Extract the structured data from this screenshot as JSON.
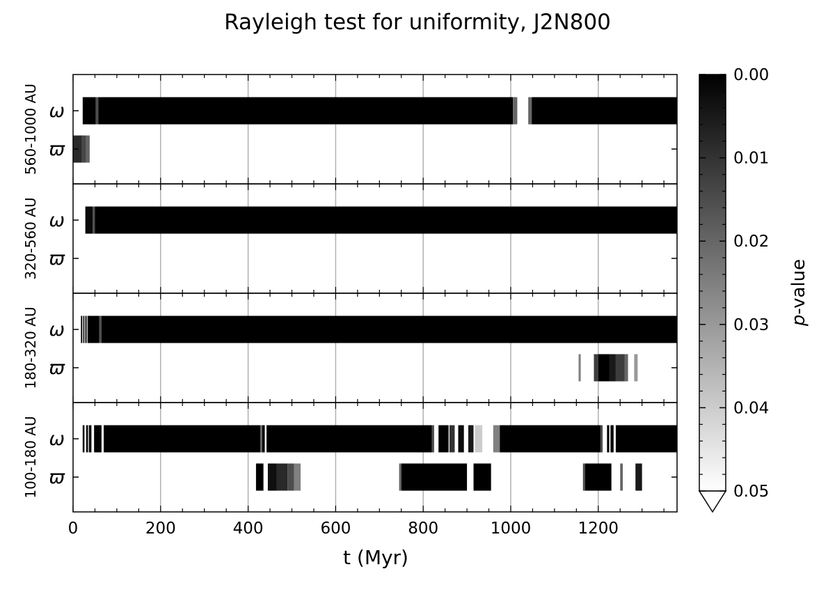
{
  "chart_data": {
    "type": "heatmap",
    "title": "Rayleigh test for uniformity, J2N800",
    "xlabel": "t (Myr)",
    "xlim": [
      0,
      1380
    ],
    "xticks": [
      0,
      200,
      400,
      600,
      800,
      1000,
      1200
    ],
    "x_grid": true,
    "colorbar": {
      "label_italic": "p",
      "label_rest": "-value",
      "range": [
        0.0,
        0.05
      ],
      "ticks": [
        "0.00",
        "0.01",
        "0.02",
        "0.03",
        "0.04",
        "0.05"
      ],
      "colormap": "gray",
      "extend": "max"
    },
    "rows": [
      "ω",
      "ϖ"
    ],
    "panels": [
      {
        "label": "560-1000 AU",
        "series": [
          {
            "name": "ω",
            "segments": [
              {
                "x0": 22,
                "x1": 52,
                "p": 0.0
              },
              {
                "x0": 52,
                "x1": 58,
                "p": 0.015
              },
              {
                "x0": 58,
                "x1": 1005,
                "p": 0.0
              },
              {
                "x0": 1005,
                "x1": 1015,
                "p": 0.02
              },
              {
                "x0": 1040,
                "x1": 1048,
                "p": 0.02
              },
              {
                "x0": 1048,
                "x1": 1380,
                "p": 0.0
              }
            ]
          },
          {
            "name": "ϖ",
            "segments": [
              {
                "x0": 0,
                "x1": 20,
                "p": 0.008
              },
              {
                "x0": 20,
                "x1": 30,
                "p": 0.014
              },
              {
                "x0": 30,
                "x1": 38,
                "p": 0.02
              }
            ]
          }
        ]
      },
      {
        "label": "320-560 AU",
        "series": [
          {
            "name": "ω",
            "segments": [
              {
                "x0": 28,
                "x1": 45,
                "p": 0.002
              },
              {
                "x0": 45,
                "x1": 50,
                "p": 0.015
              },
              {
                "x0": 50,
                "x1": 1380,
                "p": 0.0
              }
            ]
          },
          {
            "name": "ϖ",
            "segments": []
          }
        ]
      },
      {
        "label": "180-320 AU",
        "series": [
          {
            "name": "ω",
            "segments": [
              {
                "x0": 18,
                "x1": 21,
                "p": 0.0
              },
              {
                "x0": 23,
                "x1": 26,
                "p": 0.005
              },
              {
                "x0": 28,
                "x1": 31,
                "p": 0.0
              },
              {
                "x0": 33,
                "x1": 60,
                "p": 0.0
              },
              {
                "x0": 60,
                "x1": 65,
                "p": 0.015
              },
              {
                "x0": 65,
                "x1": 1380,
                "p": 0.0
              }
            ]
          },
          {
            "name": "ϖ",
            "segments": [
              {
                "x0": 1155,
                "x1": 1160,
                "p": 0.025
              },
              {
                "x0": 1190,
                "x1": 1200,
                "p": 0.012
              },
              {
                "x0": 1200,
                "x1": 1225,
                "p": 0.0
              },
              {
                "x0": 1225,
                "x1": 1240,
                "p": 0.005
              },
              {
                "x0": 1240,
                "x1": 1260,
                "p": 0.012
              },
              {
                "x0": 1260,
                "x1": 1268,
                "p": 0.02
              },
              {
                "x0": 1282,
                "x1": 1290,
                "p": 0.03
              }
            ]
          }
        ]
      },
      {
        "label": "100-180 AU",
        "series": [
          {
            "name": "ω",
            "segments": [
              {
                "x0": 22,
                "x1": 26,
                "p": 0.0
              },
              {
                "x0": 30,
                "x1": 34,
                "p": 0.0
              },
              {
                "x0": 36,
                "x1": 42,
                "p": 0.003
              },
              {
                "x0": 48,
                "x1": 65,
                "p": 0.0
              },
              {
                "x0": 70,
                "x1": 428,
                "p": 0.0
              },
              {
                "x0": 428,
                "x1": 432,
                "p": 0.02
              },
              {
                "x0": 432,
                "x1": 438,
                "p": 0.0
              },
              {
                "x0": 442,
                "x1": 820,
                "p": 0.0
              },
              {
                "x0": 820,
                "x1": 825,
                "p": 0.015
              },
              {
                "x0": 835,
                "x1": 858,
                "p": 0.0
              },
              {
                "x0": 860,
                "x1": 872,
                "p": 0.01
              },
              {
                "x0": 880,
                "x1": 893,
                "p": 0.002
              },
              {
                "x0": 903,
                "x1": 915,
                "p": 0.005
              },
              {
                "x0": 918,
                "x1": 935,
                "p": 0.04
              },
              {
                "x0": 960,
                "x1": 975,
                "p": 0.025
              },
              {
                "x0": 975,
                "x1": 1205,
                "p": 0.0
              },
              {
                "x0": 1205,
                "x1": 1210,
                "p": 0.015
              },
              {
                "x0": 1220,
                "x1": 1225,
                "p": 0.0
              },
              {
                "x0": 1228,
                "x1": 1235,
                "p": 0.0
              },
              {
                "x0": 1240,
                "x1": 1380,
                "p": 0.0
              }
            ]
          },
          {
            "name": "ϖ",
            "segments": [
              {
                "x0": 418,
                "x1": 435,
                "p": 0.0
              },
              {
                "x0": 445,
                "x1": 465,
                "p": 0.003
              },
              {
                "x0": 465,
                "x1": 490,
                "p": 0.008
              },
              {
                "x0": 490,
                "x1": 505,
                "p": 0.015
              },
              {
                "x0": 505,
                "x1": 520,
                "p": 0.025
              },
              {
                "x0": 745,
                "x1": 750,
                "p": 0.02
              },
              {
                "x0": 750,
                "x1": 900,
                "p": 0.0
              },
              {
                "x0": 915,
                "x1": 955,
                "p": 0.0
              },
              {
                "x0": 1165,
                "x1": 1170,
                "p": 0.015
              },
              {
                "x0": 1170,
                "x1": 1230,
                "p": 0.0
              },
              {
                "x0": 1250,
                "x1": 1256,
                "p": 0.02
              },
              {
                "x0": 1285,
                "x1": 1300,
                "p": 0.005
              }
            ]
          }
        ]
      }
    ]
  }
}
